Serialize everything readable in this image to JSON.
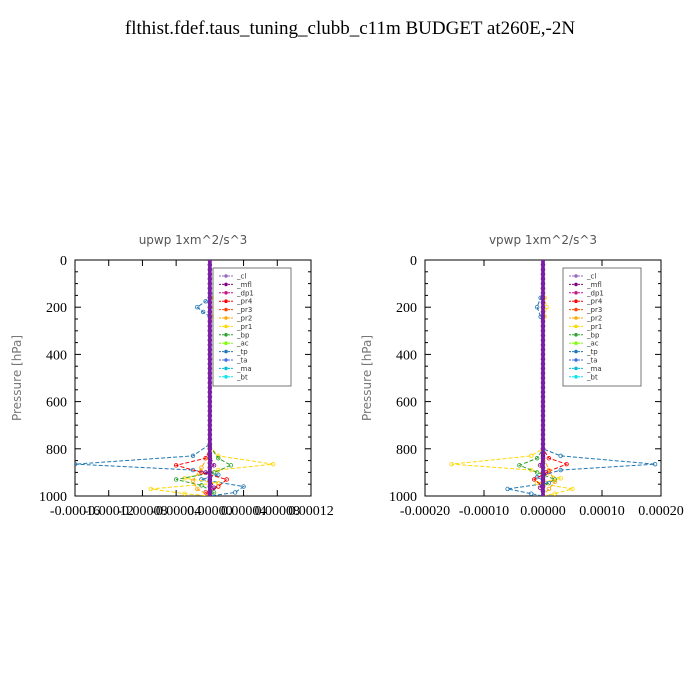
{
  "title": "flthist.fdef.taus_tuning_clubb_c11m  BUDGET at260E,-2N",
  "chart_data": [
    {
      "type": "line",
      "title": "upwp   1xm^2/s^3",
      "ylabel": "Pressure [hPa]",
      "ylim": [
        1000,
        0
      ],
      "xlim": [
        -0.00016,
        0.00012
      ],
      "y_ticks": [
        "0",
        "200",
        "400",
        "600",
        "800",
        "1000"
      ],
      "x_ticks": [
        "-0.00016",
        "-0.00012",
        "-0.00008",
        "-0.00004",
        "0.00000",
        "0.00004",
        "0.00008",
        "0.00012"
      ],
      "legend": [
        "_cl",
        "_mfl",
        "_dp1",
        "_pr4",
        "_pr3",
        "_pr2",
        "_pr1",
        "_bp",
        "_ac",
        "_tp",
        "_ta",
        "_ma",
        "_bt"
      ],
      "legend_position": "top-right",
      "series": [
        {
          "name": "_tp",
          "color": "#1f77b4",
          "points": [
            [
              0,
              0
            ],
            [
              0,
              120
            ],
            [
              2e-06,
              150
            ],
            [
              -5e-06,
              175
            ],
            [
              -1.5e-05,
              200
            ],
            [
              -8e-06,
              220
            ],
            [
              0,
              240
            ],
            [
              0,
              780
            ],
            [
              -2e-05,
              830
            ],
            [
              -0.00016,
              865
            ],
            [
              -2e-05,
              890
            ],
            [
              1e-05,
              910
            ],
            [
              -1e-05,
              930
            ],
            [
              4e-05,
              960
            ],
            [
              3e-05,
              985
            ],
            [
              0,
              1000
            ]
          ]
        },
        {
          "name": "_pr1",
          "color": "#ffd700",
          "points": [
            [
              0,
              0
            ],
            [
              0,
              120
            ],
            [
              3e-06,
              160
            ],
            [
              5e-06,
              200
            ],
            [
              3e-06,
              240
            ],
            [
              0,
              280
            ],
            [
              0,
              790
            ],
            [
              1e-05,
              830
            ],
            [
              7.5e-05,
              865
            ],
            [
              1e-05,
              890
            ],
            [
              -3e-05,
              925
            ],
            [
              1e-05,
              945
            ],
            [
              -7e-05,
              970
            ],
            [
              -3e-05,
              990
            ],
            [
              0,
              1000
            ]
          ]
        },
        {
          "name": "_bp",
          "color": "#2ca02c",
          "points": [
            [
              0,
              0
            ],
            [
              0,
              790
            ],
            [
              1e-05,
              840
            ],
            [
              2.5e-05,
              870
            ],
            [
              5e-06,
              900
            ],
            [
              -4e-05,
              930
            ],
            [
              -1e-05,
              955
            ],
            [
              5e-06,
              985
            ],
            [
              0,
              1000
            ]
          ]
        },
        {
          "name": "_pr4",
          "color": "#ff0000",
          "points": [
            [
              0,
              0
            ],
            [
              0,
              800
            ],
            [
              -5e-06,
              840
            ],
            [
              -4e-05,
              870
            ],
            [
              -1e-05,
              900
            ],
            [
              2e-05,
              930
            ],
            [
              1e-05,
              960
            ],
            [
              -5e-06,
              985
            ],
            [
              0,
              1000
            ]
          ]
        },
        {
          "name": "_pr2",
          "color": "#ffa500",
          "points": [
            [
              0,
              0
            ],
            [
              0,
              820
            ],
            [
              -1e-05,
              880
            ],
            [
              -2e-05,
              935
            ],
            [
              -1.5e-05,
              970
            ],
            [
              0,
              1000
            ]
          ]
        },
        {
          "name": "_mfl",
          "color": "#800080",
          "points": [
            [
              0,
              0
            ],
            [
              0,
              830
            ],
            [
              5e-06,
              870
            ],
            [
              -5e-06,
              900
            ],
            [
              0,
              930
            ],
            [
              5e-06,
              965
            ],
            [
              0,
              1000
            ]
          ]
        },
        {
          "name": "_cl",
          "color": "#6a0dad",
          "points": [
            [
              0,
              0
            ],
            [
              0,
              1000
            ]
          ]
        }
      ]
    },
    {
      "type": "line",
      "title": "vpwp   1xm^2/s^3",
      "ylabel": "Pressure [hPa]",
      "ylim": [
        1000,
        0
      ],
      "xlim": [
        -0.0002,
        0.0002
      ],
      "y_ticks": [
        "0",
        "200",
        "400",
        "600",
        "800",
        "1000"
      ],
      "x_ticks": [
        "-0.00020",
        "-0.00010",
        "0.00000",
        "0.00010",
        "0.00020"
      ],
      "legend": [
        "_cl",
        "_mfl",
        "_dp1",
        "_pr4",
        "_pr3",
        "_pr2",
        "_pr1",
        "_bp",
        "_ac",
        "_tp",
        "_ta",
        "_ma",
        "_bt"
      ],
      "legend_position": "top-right",
      "series": [
        {
          "name": "_tp",
          "color": "#1f77b4",
          "points": [
            [
              0,
              0
            ],
            [
              0,
              120
            ],
            [
              -4e-06,
              160
            ],
            [
              -1e-05,
              200
            ],
            [
              -4e-06,
              240
            ],
            [
              0,
              280
            ],
            [
              0,
              800
            ],
            [
              3e-05,
              830
            ],
            [
              0.00019,
              865
            ],
            [
              3e-05,
              890
            ],
            [
              -1e-05,
              920
            ],
            [
              1e-05,
              945
            ],
            [
              -6e-05,
              970
            ],
            [
              -2e-05,
              990
            ],
            [
              0,
              1000
            ]
          ]
        },
        {
          "name": "_pr1",
          "color": "#ffd700",
          "points": [
            [
              0,
              0
            ],
            [
              0,
              120
            ],
            [
              3e-06,
              160
            ],
            [
              6e-06,
              200
            ],
            [
              3e-06,
              240
            ],
            [
              0,
              280
            ],
            [
              0,
              800
            ],
            [
              -2e-05,
              830
            ],
            [
              -0.000155,
              865
            ],
            [
              -2e-05,
              890
            ],
            [
              3e-05,
              925
            ],
            [
              -1e-05,
              945
            ],
            [
              5e-05,
              970
            ],
            [
              2e-05,
              990
            ],
            [
              0,
              1000
            ]
          ]
        },
        {
          "name": "_bp",
          "color": "#2ca02c",
          "points": [
            [
              0,
              0
            ],
            [
              0,
              800
            ],
            [
              -1e-05,
              840
            ],
            [
              -4e-05,
              870
            ],
            [
              -1e-05,
              900
            ],
            [
              2e-05,
              930
            ],
            [
              0,
              960
            ],
            [
              0,
              1000
            ]
          ]
        },
        {
          "name": "_pr4",
          "color": "#ff0000",
          "points": [
            [
              0,
              0
            ],
            [
              0,
              800
            ],
            [
              1e-05,
              840
            ],
            [
              4e-05,
              865
            ],
            [
              1e-05,
              895
            ],
            [
              -1.5e-05,
              930
            ],
            [
              0,
              960
            ],
            [
              0,
              1000
            ]
          ]
        },
        {
          "name": "_pr2",
          "color": "#ffa500",
          "points": [
            [
              0,
              0
            ],
            [
              0,
              830
            ],
            [
              1e-05,
              890
            ],
            [
              2e-05,
              940
            ],
            [
              1e-05,
              970
            ],
            [
              0,
              1000
            ]
          ]
        },
        {
          "name": "_mfl",
          "color": "#800080",
          "points": [
            [
              0,
              0
            ],
            [
              0,
              830
            ],
            [
              -5e-06,
              870
            ],
            [
              5e-06,
              900
            ],
            [
              0,
              930
            ],
            [
              -5e-06,
              965
            ],
            [
              0,
              1000
            ]
          ]
        },
        {
          "name": "_cl",
          "color": "#6a0dad",
          "points": [
            [
              0,
              0
            ],
            [
              0,
              1000
            ]
          ]
        }
      ]
    }
  ],
  "legend_styles": {
    "_cl": {
      "color": "#9467bd",
      "marker": "o"
    },
    "_mfl": {
      "color": "#800080",
      "marker": "*"
    },
    "_dp1": {
      "color": "#c71585",
      "marker": "o"
    },
    "_pr4": {
      "color": "#ff0000",
      "marker": "x"
    },
    "_pr3": {
      "color": "#ff4500",
      "marker": "v"
    },
    "_pr2": {
      "color": "#ffa500",
      "marker": "^"
    },
    "_pr1": {
      "color": "#ffd700",
      "marker": "o"
    },
    "_bp": {
      "color": "#2ca02c",
      "marker": "x"
    },
    "_ac": {
      "color": "#7fff00",
      "marker": "o"
    },
    "_tp": {
      "color": "#1f77b4",
      "marker": "*"
    },
    "_ta": {
      "color": "#4169e1",
      "marker": "+"
    },
    "_ma": {
      "color": "#00bcd4",
      "marker": "-"
    },
    "_bt": {
      "color": "#00e5ee",
      "marker": "o"
    }
  }
}
